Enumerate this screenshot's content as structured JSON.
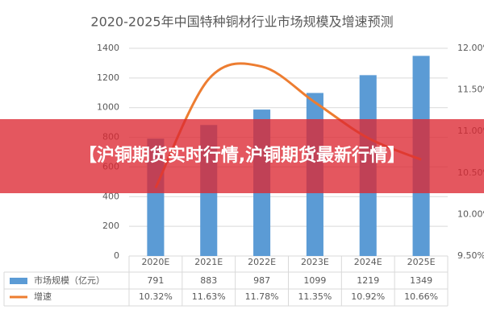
{
  "chart_data": {
    "type": "bar_line",
    "title": "2020-2025年中国特种铜材行业市场规模及增速预测",
    "categories": [
      "2020E",
      "2021E",
      "2022E",
      "2023E",
      "2024E",
      "2025E"
    ],
    "series": [
      {
        "name": "市场规模（亿元）",
        "color": "#5b9bd5",
        "type": "bar",
        "values": [
          791,
          883,
          987,
          1099,
          1219,
          1349
        ]
      },
      {
        "name": "增速",
        "color": "#ed7d31",
        "type": "line",
        "axis": "y2",
        "values": [
          10.32,
          11.63,
          11.78,
          11.35,
          10.92,
          10.66
        ],
        "value_labels": [
          "10.32%",
          "11.63%",
          "11.78%",
          "11.35%",
          "10.92%",
          "10.66%"
        ]
      }
    ],
    "ylim": [
      0,
      1400
    ],
    "yticks": [
      0,
      200,
      400,
      600,
      800,
      1000,
      1200,
      1400
    ],
    "y2lim": [
      9.5,
      12.0
    ],
    "y2ticks": [
      {
        "value": 9.5,
        "label": "9.50%"
      },
      {
        "value": 10.0,
        "label": "10.00%"
      },
      {
        "value": 10.5,
        "label": "10.50%"
      },
      {
        "value": 11.0,
        "label": "11.00%"
      },
      {
        "value": 11.5,
        "label": "11.50%"
      },
      {
        "value": 12.0,
        "label": "12.00%"
      }
    ],
    "grid": true
  },
  "banner": {
    "text": "【沪铜期货实时行情,沪铜期货最新行情】"
  }
}
